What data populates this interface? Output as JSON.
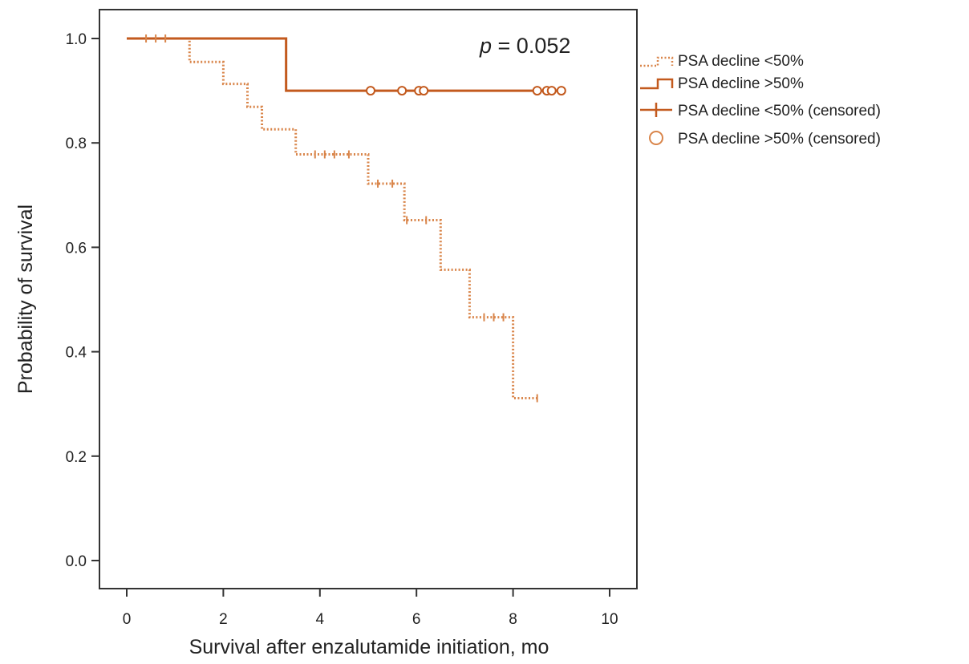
{
  "chart_data": {
    "type": "line",
    "subtype": "kaplan-meier",
    "xlabel": "Survival after enzalutamide initiation, mo",
    "ylabel": "Probability of survival",
    "xlim": [
      0,
      10
    ],
    "ylim": [
      0,
      1
    ],
    "x_ticks": [
      "0",
      "2",
      "4",
      "6",
      "8",
      "10"
    ],
    "y_ticks": [
      "0.0",
      "0.2",
      "0.4",
      "0.6",
      "0.8",
      "1.0"
    ],
    "grid": false,
    "annotation": {
      "p_symbol": "p",
      "p_value": " = 0.052"
    },
    "legend_position": "right",
    "legend": [
      "PSA decline <50%",
      "PSA decline >50%",
      "PSA decline <50% (censored)",
      "PSA decline >50% (censored)"
    ],
    "series": [
      {
        "name": "PSA decline <50%",
        "style": "dotted",
        "color": "#d9854a",
        "steps": [
          [
            0,
            1.0
          ],
          [
            1.3,
            0.955
          ],
          [
            2.0,
            0.913
          ],
          [
            2.5,
            0.869
          ],
          [
            2.8,
            0.826
          ],
          [
            3.5,
            0.778
          ],
          [
            5.0,
            0.722
          ],
          [
            5.75,
            0.652
          ],
          [
            6.5,
            0.557
          ],
          [
            7.1,
            0.466
          ],
          [
            8.0,
            0.311
          ],
          [
            8.5,
            0.311
          ]
        ],
        "censored": [
          0.4,
          0.6,
          0.8,
          3.9,
          4.1,
          4.3,
          4.6,
          5.2,
          5.5,
          5.8,
          6.2,
          7.4,
          7.6,
          7.8,
          8.5
        ]
      },
      {
        "name": "PSA decline >50%",
        "style": "solid",
        "color": "#c35a1e",
        "steps": [
          [
            0,
            1.0
          ],
          [
            3.3,
            0.9
          ],
          [
            9.0,
            0.9
          ]
        ],
        "censored": [
          5.05,
          5.7,
          6.05,
          6.15,
          8.5,
          8.7,
          8.8,
          9.0
        ]
      }
    ]
  }
}
